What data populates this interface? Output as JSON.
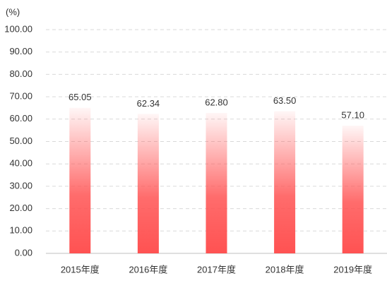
{
  "chart_data": {
    "type": "bar",
    "y_label": "(%)",
    "categories": [
      "2015年度",
      "2016年度",
      "2017年度",
      "2018年度",
      "2019年度"
    ],
    "values": [
      65.05,
      62.34,
      62.8,
      63.5,
      57.1
    ],
    "value_labels": [
      "65.05",
      "62.34",
      "62.80",
      "63.50",
      "57.10"
    ],
    "color": "#ff5252",
    "ylim": [
      0,
      100
    ],
    "yticks": [
      {
        "value": 0,
        "label": "0.00"
      },
      {
        "value": 10,
        "label": "10.00"
      },
      {
        "value": 20,
        "label": "20.00"
      },
      {
        "value": 30,
        "label": "30.00"
      },
      {
        "value": 40,
        "label": "40.00"
      },
      {
        "value": 50,
        "label": "50.00"
      },
      {
        "value": 60,
        "label": "60.00"
      },
      {
        "value": 70,
        "label": "70.00"
      },
      {
        "value": 80,
        "label": "80.00"
      },
      {
        "value": 90,
        "label": "90.00"
      },
      {
        "value": 100,
        "label": "100.00"
      }
    ],
    "grid": true
  }
}
